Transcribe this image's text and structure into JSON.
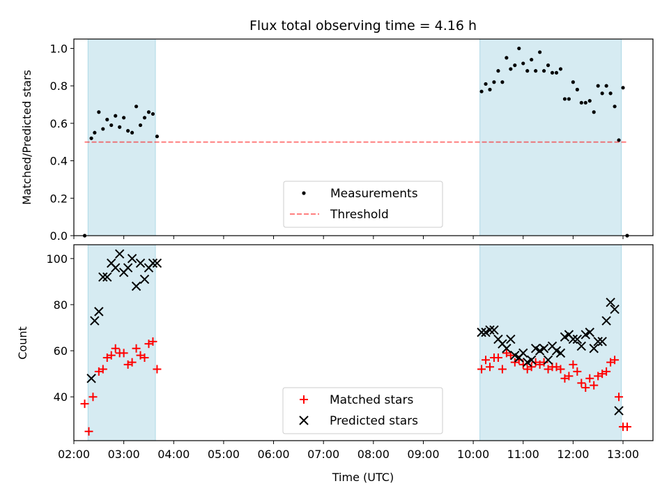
{
  "title": "Flux total observing time = 4.16 h",
  "colors": {
    "shade": "#add8e6",
    "threshold": "#ff0000",
    "measurements": "#000000",
    "matched": "#ff0000",
    "predicted": "#000000"
  },
  "chart_data": [
    {
      "type": "scatter",
      "title": "Flux total observing time = 4.16 h",
      "xlabel": "",
      "ylabel": "Matched/Predicted stars",
      "xlim": [
        "02:00",
        "13:36"
      ],
      "ylim": [
        0,
        1.05
      ],
      "y_ticks": [
        "0.0",
        "0.2",
        "0.4",
        "0.6",
        "0.8",
        "1.0"
      ],
      "shaded_intervals": [
        [
          "02:17",
          "03:38"
        ],
        [
          "10:08",
          "12:58"
        ]
      ],
      "legend": {
        "placement": "lower-center",
        "entries": [
          "Measurements",
          "Threshold"
        ]
      },
      "series": [
        {
          "name": "Measurements",
          "marker": "dot",
          "points": [
            [
              "02:13",
              0.0
            ],
            [
              "02:21",
              0.52
            ],
            [
              "02:25",
              0.55
            ],
            [
              "02:30",
              0.66
            ],
            [
              "02:35",
              0.57
            ],
            [
              "02:40",
              0.62
            ],
            [
              "02:45",
              0.59
            ],
            [
              "02:50",
              0.64
            ],
            [
              "02:55",
              0.58
            ],
            [
              "03:00",
              0.63
            ],
            [
              "03:05",
              0.56
            ],
            [
              "03:10",
              0.55
            ],
            [
              "03:15",
              0.69
            ],
            [
              "03:20",
              0.59
            ],
            [
              "03:25",
              0.63
            ],
            [
              "03:30",
              0.66
            ],
            [
              "03:35",
              0.65
            ],
            [
              "03:40",
              0.53
            ],
            [
              "10:10",
              0.77
            ],
            [
              "10:15",
              0.81
            ],
            [
              "10:20",
              0.78
            ],
            [
              "10:25",
              0.82
            ],
            [
              "10:30",
              0.88
            ],
            [
              "10:35",
              0.82
            ],
            [
              "10:40",
              0.95
            ],
            [
              "10:45",
              0.89
            ],
            [
              "10:50",
              0.91
            ],
            [
              "10:55",
              1.0
            ],
            [
              "11:00",
              0.92
            ],
            [
              "11:05",
              0.88
            ],
            [
              "11:10",
              0.94
            ],
            [
              "11:15",
              0.88
            ],
            [
              "11:20",
              0.98
            ],
            [
              "11:25",
              0.88
            ],
            [
              "11:30",
              0.91
            ],
            [
              "11:35",
              0.87
            ],
            [
              "11:40",
              0.87
            ],
            [
              "11:45",
              0.89
            ],
            [
              "11:50",
              0.73
            ],
            [
              "11:55",
              0.73
            ],
            [
              "12:00",
              0.82
            ],
            [
              "12:05",
              0.78
            ],
            [
              "12:10",
              0.71
            ],
            [
              "12:15",
              0.71
            ],
            [
              "12:20",
              0.72
            ],
            [
              "12:25",
              0.66
            ],
            [
              "12:30",
              0.8
            ],
            [
              "12:35",
              0.76
            ],
            [
              "12:40",
              0.8
            ],
            [
              "12:45",
              0.76
            ],
            [
              "12:50",
              0.69
            ],
            [
              "12:55",
              0.51
            ],
            [
              "13:00",
              0.79
            ],
            [
              "13:05",
              0.0
            ]
          ]
        },
        {
          "name": "Threshold",
          "line": "dashed",
          "points": [
            [
              "02:13",
              0.5
            ],
            [
              "13:05",
              0.5
            ]
          ]
        }
      ]
    },
    {
      "type": "scatter",
      "title": "",
      "xlabel": "Time (UTC)",
      "ylabel": "Count",
      "xlim": [
        "02:00",
        "13:36"
      ],
      "ylim": [
        21,
        106
      ],
      "x_ticks": [
        "02:00",
        "03:00",
        "04:00",
        "05:00",
        "06:00",
        "07:00",
        "08:00",
        "09:00",
        "10:00",
        "11:00",
        "12:00",
        "13:00"
      ],
      "y_ticks": [
        "40",
        "60",
        "80",
        "100"
      ],
      "shaded_intervals": [
        [
          "02:17",
          "03:38"
        ],
        [
          "10:08",
          "12:58"
        ]
      ],
      "legend": {
        "placement": "lower-center",
        "entries": [
          "Matched stars",
          "Predicted stars"
        ]
      },
      "series": [
        {
          "name": "Matched stars",
          "marker": "plus",
          "points": [
            [
              "02:13",
              37
            ],
            [
              "02:18",
              25
            ],
            [
              "02:23",
              40
            ],
            [
              "02:30",
              51
            ],
            [
              "02:35",
              52
            ],
            [
              "02:40",
              57
            ],
            [
              "02:45",
              58
            ],
            [
              "02:50",
              61
            ],
            [
              "02:55",
              59
            ],
            [
              "03:00",
              59
            ],
            [
              "03:05",
              54
            ],
            [
              "03:10",
              55
            ],
            [
              "03:15",
              61
            ],
            [
              "03:20",
              58
            ],
            [
              "03:25",
              57
            ],
            [
              "03:30",
              63
            ],
            [
              "03:35",
              64
            ],
            [
              "03:40",
              52
            ],
            [
              "10:10",
              52
            ],
            [
              "10:15",
              56
            ],
            [
              "10:20",
              53
            ],
            [
              "10:25",
              57
            ],
            [
              "10:30",
              57
            ],
            [
              "10:35",
              52
            ],
            [
              "10:40",
              59
            ],
            [
              "10:45",
              58
            ],
            [
              "10:50",
              55
            ],
            [
              "10:55",
              56
            ],
            [
              "11:00",
              54
            ],
            [
              "11:05",
              52
            ],
            [
              "11:10",
              53
            ],
            [
              "11:15",
              55
            ],
            [
              "11:20",
              54
            ],
            [
              "11:25",
              55
            ],
            [
              "11:30",
              52
            ],
            [
              "11:35",
              53
            ],
            [
              "11:40",
              53
            ],
            [
              "11:45",
              52
            ],
            [
              "11:50",
              48
            ],
            [
              "11:55",
              49
            ],
            [
              "12:00",
              54
            ],
            [
              "12:05",
              51
            ],
            [
              "12:10",
              46
            ],
            [
              "12:15",
              44
            ],
            [
              "12:20",
              48
            ],
            [
              "12:25",
              45
            ],
            [
              "12:30",
              49
            ],
            [
              "12:35",
              50
            ],
            [
              "12:40",
              51
            ],
            [
              "12:45",
              55
            ],
            [
              "12:50",
              56
            ],
            [
              "12:55",
              40
            ],
            [
              "13:00",
              27
            ],
            [
              "13:05",
              27
            ]
          ]
        },
        {
          "name": "Predicted stars",
          "marker": "x",
          "points": [
            [
              "02:21",
              48
            ],
            [
              "02:25",
              73
            ],
            [
              "02:30",
              77
            ],
            [
              "02:35",
              92
            ],
            [
              "02:40",
              92
            ],
            [
              "02:45",
              98
            ],
            [
              "02:50",
              96
            ],
            [
              "02:55",
              102
            ],
            [
              "03:00",
              94
            ],
            [
              "03:05",
              96
            ],
            [
              "03:10",
              100
            ],
            [
              "03:15",
              88
            ],
            [
              "03:20",
              98
            ],
            [
              "03:25",
              91
            ],
            [
              "03:30",
              96
            ],
            [
              "03:35",
              98
            ],
            [
              "03:40",
              98
            ],
            [
              "10:10",
              68
            ],
            [
              "10:15",
              68
            ],
            [
              "10:20",
              69
            ],
            [
              "10:25",
              69
            ],
            [
              "10:30",
              65
            ],
            [
              "10:35",
              63
            ],
            [
              "10:40",
              61
            ],
            [
              "10:45",
              65
            ],
            [
              "10:50",
              58
            ],
            [
              "10:55",
              57
            ],
            [
              "11:00",
              59
            ],
            [
              "11:05",
              55
            ],
            [
              "11:10",
              56
            ],
            [
              "11:15",
              61
            ],
            [
              "11:20",
              60
            ],
            [
              "11:25",
              61
            ],
            [
              "11:30",
              56
            ],
            [
              "11:35",
              62
            ],
            [
              "11:40",
              60
            ],
            [
              "11:45",
              59
            ],
            [
              "11:50",
              66
            ],
            [
              "11:55",
              67
            ],
            [
              "12:00",
              65
            ],
            [
              "12:05",
              65
            ],
            [
              "12:10",
              62
            ],
            [
              "12:15",
              67
            ],
            [
              "12:20",
              68
            ],
            [
              "12:25",
              61
            ],
            [
              "12:30",
              64
            ],
            [
              "12:35",
              64
            ],
            [
              "12:40",
              73
            ],
            [
              "12:45",
              81
            ],
            [
              "12:50",
              78
            ],
            [
              "12:55",
              34
            ]
          ]
        }
      ]
    }
  ]
}
